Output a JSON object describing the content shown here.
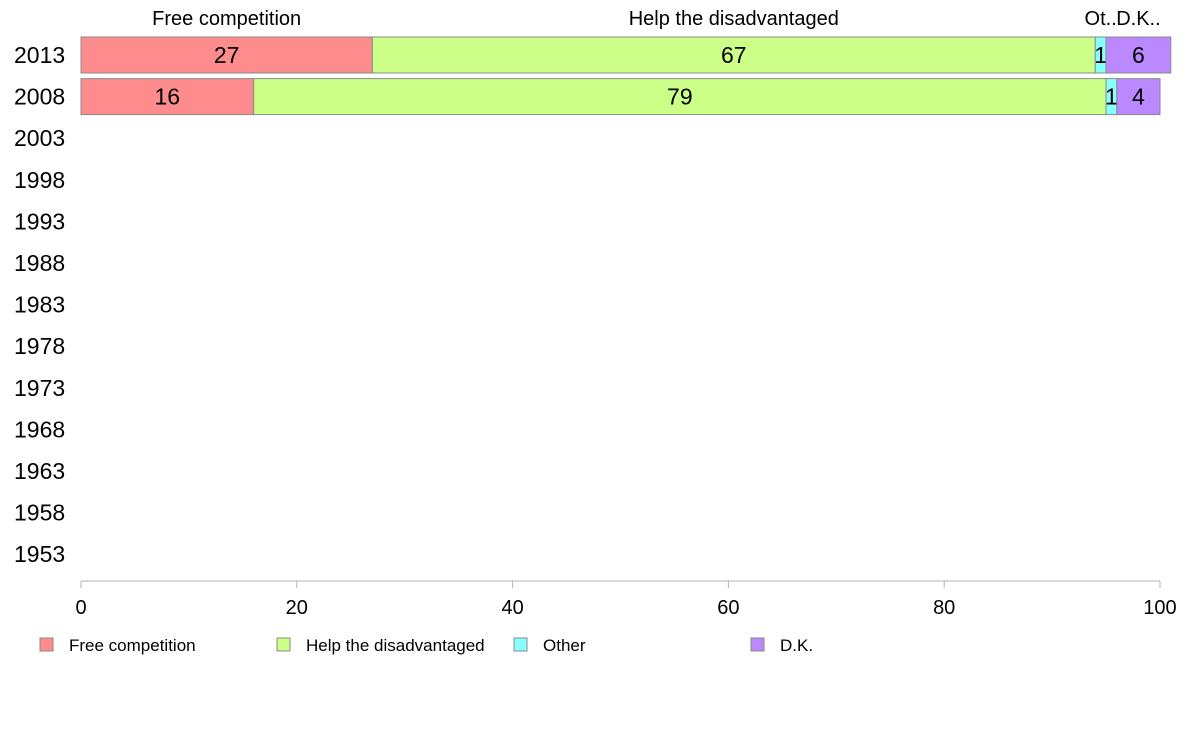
{
  "chart_data": {
    "type": "bar",
    "orientation": "horizontal",
    "stacked": true,
    "categories": [
      "2013",
      "2008",
      "2003",
      "1998",
      "1993",
      "1988",
      "1983",
      "1978",
      "1973",
      "1968",
      "1963",
      "1958",
      "1953"
    ],
    "series": [
      {
        "name": "Free competition",
        "color": "#ff8c8c",
        "values": [
          27,
          16,
          null,
          null,
          null,
          null,
          null,
          null,
          null,
          null,
          null,
          null,
          null
        ]
      },
      {
        "name": "Help the disadvantaged",
        "color": "#ccff88",
        "values": [
          67,
          79,
          null,
          null,
          null,
          null,
          null,
          null,
          null,
          null,
          null,
          null,
          null
        ]
      },
      {
        "name": "Other",
        "color": "#88ffff",
        "values": [
          1,
          1,
          null,
          null,
          null,
          null,
          null,
          null,
          null,
          null,
          null,
          null,
          null
        ]
      },
      {
        "name": "D.K.",
        "color": "#bb88ff",
        "values": [
          6,
          4,
          null,
          null,
          null,
          null,
          null,
          null,
          null,
          null,
          null,
          null,
          null
        ]
      }
    ],
    "column_headers": [
      "Free competition",
      "Help the disadvantaged",
      "Ot..",
      "D.K.."
    ],
    "xlim": [
      0,
      100
    ],
    "xticks": [
      0,
      20,
      40,
      60,
      80,
      100
    ],
    "xlabel": "",
    "ylabel": "",
    "title": "",
    "grid": false,
    "legend_position": "bottom-left"
  }
}
